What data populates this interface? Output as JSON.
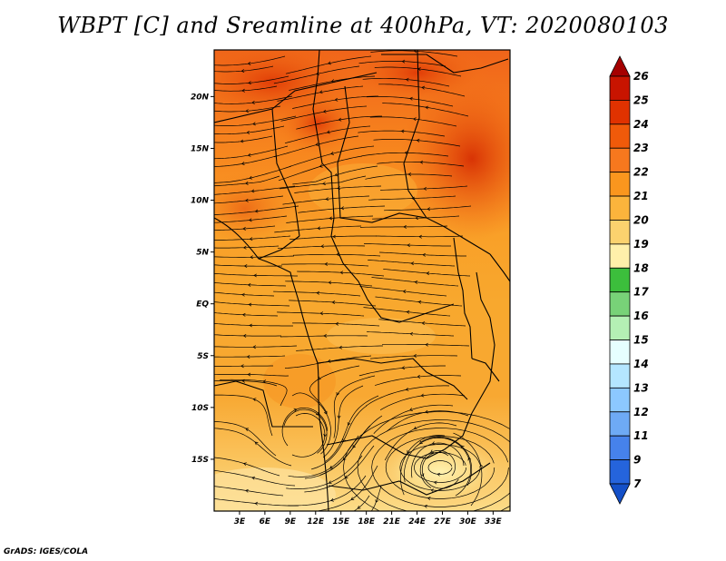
{
  "title": "WBPT [C] and Sreamline at 400hPa, VT: 2020080103",
  "credit": "GrADS: IGES/COLA",
  "map": {
    "projection": "latlon",
    "lon_range": [
      0,
      35
    ],
    "lat_range": [
      -20,
      24.5
    ],
    "lat_ticks": [
      "20N",
      "15N",
      "10N",
      "5N",
      "EQ",
      "5S",
      "10S",
      "15S"
    ],
    "lon_ticks": [
      "3E",
      "6E",
      "9E",
      "12E",
      "15E",
      "18E",
      "21E",
      "24E",
      "27E",
      "30E",
      "33E"
    ],
    "field": "wet-bulb potential temperature",
    "overlay": "streamlines",
    "features": [
      "country-borders",
      "coastlines",
      "anticyclonic-vortex-near-27E-17S"
    ]
  },
  "colorbar": {
    "orientation": "vertical",
    "labels": [
      "26",
      "25",
      "24",
      "23",
      "22",
      "21",
      "20",
      "19",
      "18",
      "17",
      "16",
      "15",
      "14",
      "13",
      "12",
      "11",
      "9",
      "7"
    ],
    "colors": [
      "#a50000",
      "#c81400",
      "#e03200",
      "#f05a0a",
      "#f7781e",
      "#fa961e",
      "#fbb43c",
      "#fbd26e",
      "#fff0aa",
      "#3cbe3c",
      "#78d278",
      "#b4f0b4",
      "#e6ffff",
      "#b4e6ff",
      "#8cc8ff",
      "#6eaaf5",
      "#4682eb",
      "#2564dc",
      "#1450c8"
    ]
  }
}
